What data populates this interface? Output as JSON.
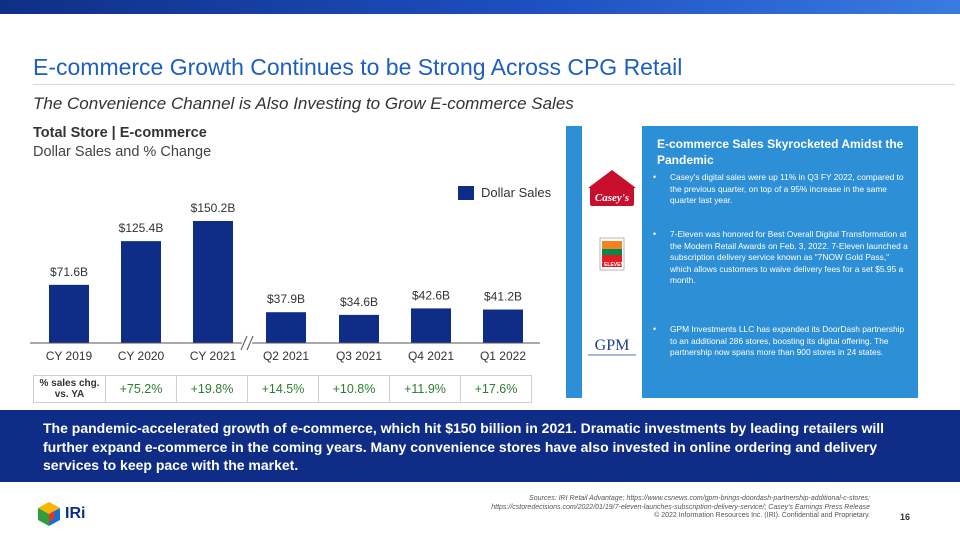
{
  "slide": {
    "title": "E-commerce Growth Continues to be Strong Across CPG Retail",
    "subtitle": "The Convenience Channel is Also Investing to Grow E-commerce Sales",
    "page_number": "16"
  },
  "chart_data": {
    "type": "bar",
    "title": "Total Store | E-commerce",
    "subtitle": "Dollar Sales and % Change",
    "categories": [
      "CY 2019",
      "CY 2020",
      "CY 2021",
      "Q2 2021",
      "Q3 2021",
      "Q4 2021",
      "Q1 2022"
    ],
    "series": [
      {
        "name": "Dollar Sales",
        "values": [
          71.6,
          125.4,
          150.2,
          37.9,
          34.6,
          42.6,
          41.2
        ],
        "labels": [
          "$71.6B",
          "$125.4B",
          "$150.2B",
          "$37.9B",
          "$34.6B",
          "$42.6B",
          "$41.2B"
        ]
      }
    ],
    "axis_break_after": "CY 2021",
    "groups": [
      {
        "categories": [
          "CY 2019",
          "CY 2020",
          "CY 2021"
        ],
        "ylim": [
          0,
          150.2
        ]
      },
      {
        "categories": [
          "Q2 2021",
          "Q3 2021",
          "Q4 2021",
          "Q1 2022"
        ],
        "ylim": [
          0,
          150.2
        ]
      }
    ],
    "legend_position": "top-right",
    "bar_color": "#0f2d87",
    "grid": false,
    "pct_change_label": "% sales chg. vs. YA",
    "pct_change": [
      "+75.2%",
      "+19.8%",
      "+14.5%",
      "+10.8%",
      "+11.9%",
      "+17.6%"
    ]
  },
  "panel": {
    "heading": "E-commerce Sales Skyrocketed Amidst the Pandemic",
    "logos": [
      {
        "name": "caseys-logo",
        "text": "Casey's"
      },
      {
        "name": "seven-eleven-logo",
        "text": "7 ELEVEN"
      },
      {
        "name": "gpm-logo",
        "text": "GPM"
      }
    ],
    "bullets": [
      "Casey's digital sales were up 11% in Q3 FY 2022, compared to the previous quarter, on top of a 95% increase in the same quarter last year.",
      "7-Eleven was honored for Best Overall Digital Transformation at the Modern Retail Awards on Feb. 3, 2022. 7-Eleven launched a subscription delivery service known as \"7NOW Gold Pass,\" which allows customers to waive delivery fees for a set $5.95 a month.",
      "GPM Investments LLC has expanded its DoorDash partnership to an additional 286 stores, boosting its digital offering. The partnership now spans more than 900 stores in 24 states."
    ],
    "bg_color": "#2d8fd6"
  },
  "footer": {
    "text": "The pandemic-accelerated growth of e-commerce, which hit $150 billion in 2021. Dramatic investments by leading retailers will further expand e-commerce in the coming years. Many convenience stores have also invested in online ordering and delivery services to keep pace with the market.",
    "sources_line1": "Sources: IRI Retail Advantage; https://www.csnews.com/gpm-brings-doordash-partnership-additional-c-stores;",
    "sources_line2": "https://cstoredecisions.com/2022/01/19/7-eleven-launches-subscription-delivery-service/; Casey's Earnings Press Release",
    "copyright": "© 2022 Information Resources Inc. (IRI). Confidential and Proprietary.",
    "brand": "IRi"
  }
}
